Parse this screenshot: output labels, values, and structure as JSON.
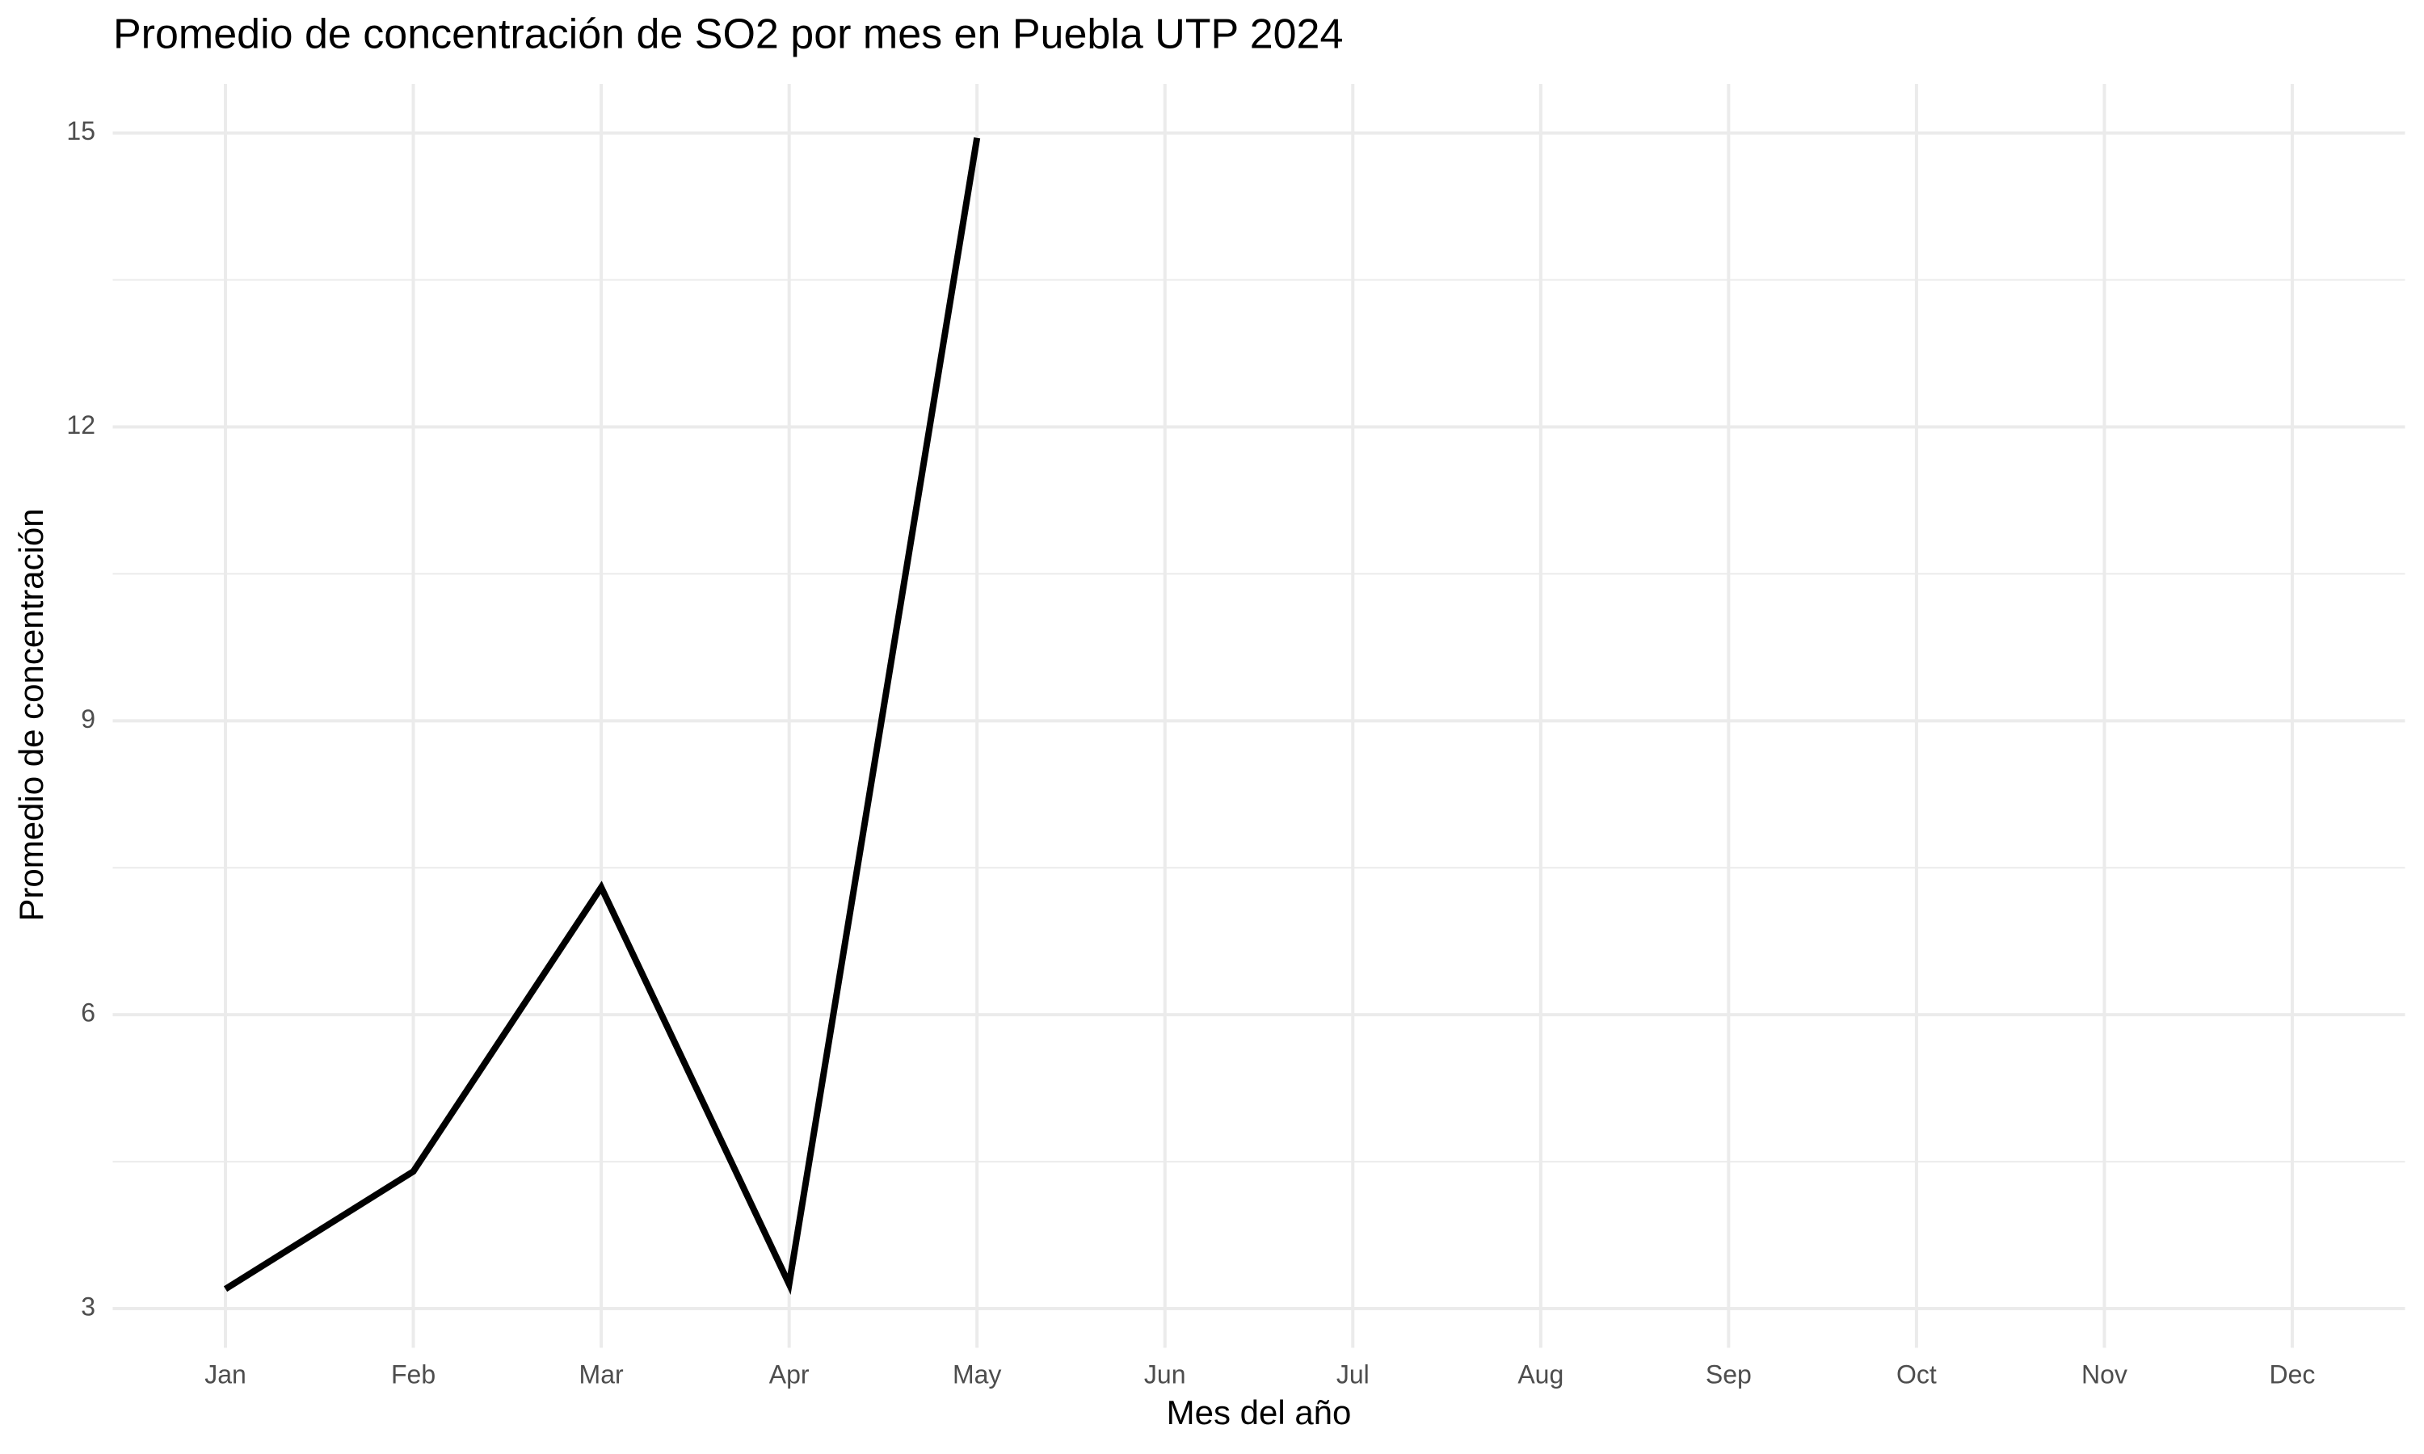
{
  "chart_data": {
    "type": "line",
    "title": "Promedio de concentración de SO2 por mes en Puebla UTP 2024",
    "x_label": "Mes del año",
    "y_label": "Promedio de concentración",
    "categories": [
      "Jan",
      "Feb",
      "Mar",
      "Apr",
      "May",
      "Jun",
      "Jul",
      "Aug",
      "Sep",
      "Oct",
      "Nov",
      "Dec"
    ],
    "series": [
      {
        "color": "#000000",
        "values": [
          3.2,
          4.4,
          7.3,
          3.25,
          14.95,
          null,
          null,
          null,
          null,
          null,
          null,
          null
        ]
      }
    ],
    "ylim": [
      2.6,
      15.5
    ],
    "yticks": [
      3,
      6,
      9,
      12,
      15
    ],
    "y_minor_ticks": [
      4.5,
      7.5,
      10.5,
      13.5
    ],
    "grid": true
  }
}
